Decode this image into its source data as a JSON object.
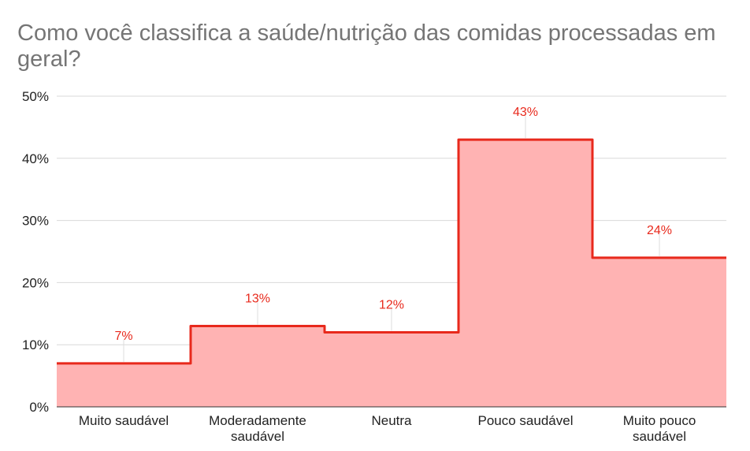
{
  "chart_data": {
    "type": "area",
    "title": "Como você classifica a saúde/nutrição das comidas processadas em geral?",
    "xlabel": "",
    "ylabel": "",
    "categories": [
      [
        "Muito saudável"
      ],
      [
        "Moderadamente",
        "saudável"
      ],
      [
        "Neutra"
      ],
      [
        "Pouco saudável"
      ],
      [
        "Muito pouco",
        "saudável"
      ]
    ],
    "series": [
      {
        "values": [
          7,
          13,
          12,
          43,
          24
        ]
      }
    ],
    "data_labels": [
      "7%",
      "13%",
      "12%",
      "43%",
      "24%"
    ],
    "y_ticks": [
      "0%",
      "10%",
      "20%",
      "30%",
      "40%",
      "50%"
    ],
    "ylim": [
      0,
      50
    ],
    "grid": true,
    "line_style": "stepped",
    "colors": {
      "line": "#e8291c",
      "fill": "#ffb3b3",
      "grid": "#d9d9d9",
      "label": "#e8291c"
    }
  }
}
